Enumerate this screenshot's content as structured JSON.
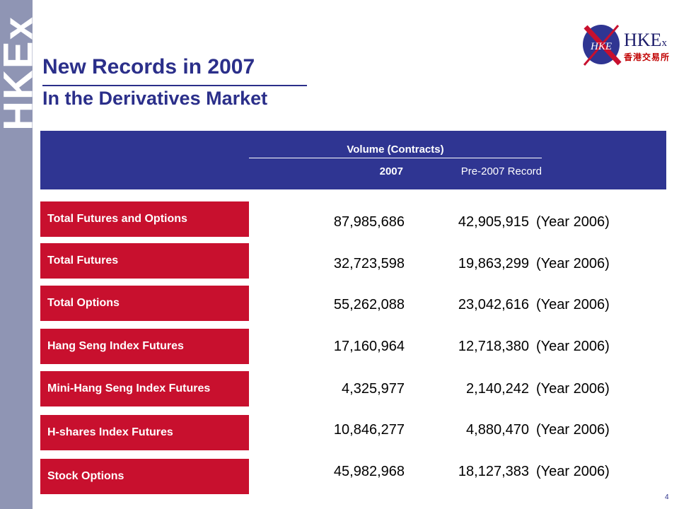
{
  "sidebar": {
    "brand": "HKEx"
  },
  "logo": {
    "badge": "HKE",
    "name_main": "HKE",
    "name_small": "x",
    "name_cn": "香港交易所"
  },
  "title": "New Records in 2007",
  "subtitle": "In the Derivatives Market",
  "table": {
    "group_header": "Volume (Contracts)",
    "col_2007": "2007",
    "col_pre": "Pre-2007 Record",
    "rows": [
      {
        "label": "Total Futures and Options",
        "v2007": "87,985,686",
        "pre": "42,905,915",
        "year": "(Year 2006)"
      },
      {
        "label": "Total Futures",
        "v2007": "32,723,598",
        "pre": "19,863,299",
        "year": "(Year 2006)"
      },
      {
        "label": "Total Options",
        "v2007": "55,262,088",
        "pre": "23,042,616",
        "year": "(Year 2006)"
      },
      {
        "label": "Hang Seng Index Futures",
        "v2007": "17,160,964",
        "pre": "12,718,380",
        "year": "(Year 2006)"
      },
      {
        "label": "Mini-Hang Seng Index Futures",
        "v2007": "4,325,977",
        "pre": "2,140,242",
        "year": "(Year 2006)"
      },
      {
        "label": "H-shares Index Futures",
        "v2007": "10,846,277",
        "pre": "4,880,470",
        "year": "(Year 2006)"
      },
      {
        "label": "Stock Options",
        "v2007": "45,982,968",
        "pre": "18,127,383",
        "year": "(Year 2006)"
      }
    ]
  },
  "page_number": "4",
  "colors": {
    "navy": "#2f3592",
    "red": "#c8102e",
    "sidebar": "#8f95b4"
  }
}
